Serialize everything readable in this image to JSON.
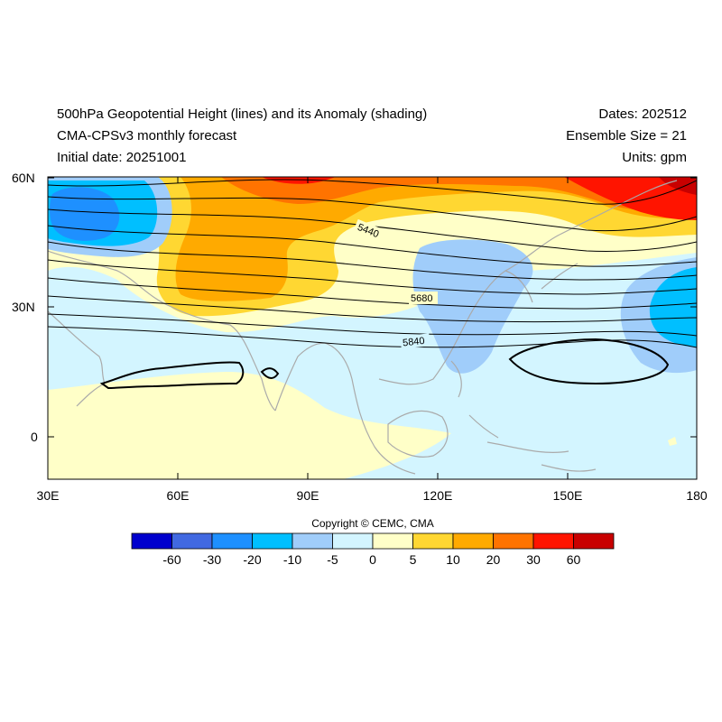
{
  "header": {
    "title": "500hPa Geopotential Height (lines) and its Anomaly (shading)",
    "model": "CMA-CPSv3 monthly forecast",
    "initial_date": "Initial date: 20251001",
    "dates": "Dates: 202512",
    "ensemble": "Ensemble Size = 21",
    "units": "Units: gpm"
  },
  "map": {
    "lat_labels": [
      "60N",
      "30N",
      "0"
    ],
    "lon_labels": [
      "30E",
      "60E",
      "90E",
      "120E",
      "150E",
      "180"
    ],
    "contour_labels": [
      "5440",
      "5680",
      "5840"
    ],
    "colors": {
      "neg60": "#0000cd",
      "neg30": "#4169e1",
      "neg20": "#1e90ff",
      "neg10": "#00bfff",
      "neg5": "#a0cdfa",
      "neg0": "#d3f5ff",
      "pos0": "#ffffc8",
      "pos5": "#ffd732",
      "pos10": "#ffaa00",
      "pos20": "#ff7300",
      "pos30": "#ff1400",
      "pos60": "#c80000",
      "coast": "#aaaaaa",
      "contour": "#000000"
    }
  },
  "copyright": "Copyright © CEMC, CMA",
  "colorbar": {
    "colors": [
      "#0000cd",
      "#4169e1",
      "#1e90ff",
      "#00bfff",
      "#a0cdfa",
      "#d3f5ff",
      "#ffffc8",
      "#ffd732",
      "#ffaa00",
      "#ff7300",
      "#ff1400",
      "#c80000"
    ],
    "labels": [
      "-60",
      "-30",
      "-20",
      "-10",
      "-5",
      "0",
      "5",
      "10",
      "20",
      "30",
      "60"
    ]
  }
}
